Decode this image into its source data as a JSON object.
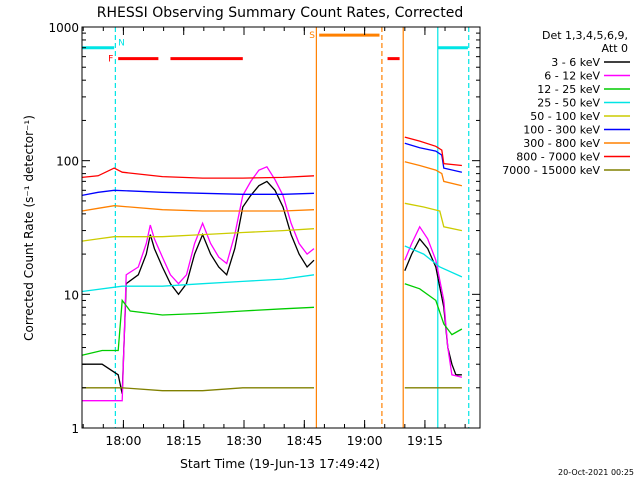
{
  "chart_data": {
    "type": "line",
    "title": "RHESSI Observing Summary Count Rates, Corrected",
    "xlabel": "Start Time (19-Jun-13 17:49:42)",
    "ylabel": "Corrected Count Rate (s⁻¹ detector⁻¹)",
    "y_scale": "log",
    "ylim": [
      1,
      1000
    ],
    "x_units": "minutes after 17:49:42",
    "xlim": [
      0,
      99
    ],
    "x_ticks": [
      {
        "t": 10.3,
        "label": "18:00"
      },
      {
        "t": 25.3,
        "label": "18:15"
      },
      {
        "t": 40.3,
        "label": "18:30"
      },
      {
        "t": 55.3,
        "label": "18:45"
      },
      {
        "t": 70.3,
        "label": "19:00"
      },
      {
        "t": 85.3,
        "label": "19:15"
      }
    ],
    "y_ticks": [
      {
        "v": 1,
        "label": "1"
      },
      {
        "v": 10,
        "label": "10"
      },
      {
        "v": 100,
        "label": "100"
      },
      {
        "v": 1000,
        "label": "1000"
      }
    ],
    "legend": {
      "header": [
        "Det 1,3,4,5,6,9,",
        "Att 0"
      ],
      "placement": "right"
    },
    "footer_date": "20-Oct-2021 00:25",
    "series": [
      {
        "name": "3 - 6 keV",
        "color": "#000000",
        "points": [
          [
            0,
            3
          ],
          [
            5,
            3
          ],
          [
            9,
            2.5
          ],
          [
            10,
            1.8
          ],
          [
            11,
            12
          ],
          [
            14,
            14
          ],
          [
            16,
            20
          ],
          [
            17,
            28
          ],
          [
            18,
            22
          ],
          [
            20,
            16
          ],
          [
            22,
            12
          ],
          [
            24,
            10
          ],
          [
            26,
            12
          ],
          [
            28,
            20
          ],
          [
            30,
            28
          ],
          [
            32,
            20
          ],
          [
            34,
            16
          ],
          [
            36,
            14
          ],
          [
            38,
            22
          ],
          [
            40,
            45
          ],
          [
            42,
            55
          ],
          [
            44,
            65
          ],
          [
            46,
            70
          ],
          [
            48,
            60
          ],
          [
            50,
            45
          ],
          [
            52,
            28
          ],
          [
            54,
            20
          ],
          [
            56,
            16
          ],
          [
            57.7,
            18
          ],
          [
            null,
            null
          ],
          [
            80.3,
            15
          ],
          [
            82,
            20
          ],
          [
            84,
            26
          ],
          [
            86,
            22
          ],
          [
            88,
            16
          ],
          [
            90,
            8
          ],
          [
            91,
            4
          ],
          [
            92,
            3
          ],
          [
            93,
            2.5
          ],
          [
            94.5,
            2.5
          ]
        ]
      },
      {
        "name": "6 - 12 keV",
        "color": "#ff00ff",
        "points": [
          [
            0,
            1.6
          ],
          [
            5,
            1.6
          ],
          [
            10,
            1.6
          ],
          [
            11,
            14
          ],
          [
            14,
            16
          ],
          [
            16,
            24
          ],
          [
            17,
            33
          ],
          [
            18,
            26
          ],
          [
            20,
            19
          ],
          [
            22,
            14
          ],
          [
            24,
            12
          ],
          [
            26,
            14
          ],
          [
            28,
            24
          ],
          [
            30,
            34
          ],
          [
            32,
            24
          ],
          [
            34,
            19
          ],
          [
            36,
            17
          ],
          [
            38,
            28
          ],
          [
            40,
            55
          ],
          [
            42,
            70
          ],
          [
            44,
            85
          ],
          [
            46,
            90
          ],
          [
            48,
            72
          ],
          [
            50,
            55
          ],
          [
            52,
            34
          ],
          [
            54,
            24
          ],
          [
            56,
            20
          ],
          [
            57.7,
            22
          ],
          [
            null,
            null
          ],
          [
            80.3,
            18
          ],
          [
            82,
            24
          ],
          [
            84,
            32
          ],
          [
            86,
            26
          ],
          [
            88,
            18
          ],
          [
            90,
            9
          ],
          [
            91,
            4
          ],
          [
            92,
            2.5
          ],
          [
            94.5,
            2.4
          ]
        ]
      },
      {
        "name": "12 - 25 keV",
        "color": "#00cc00",
        "points": [
          [
            0,
            3.5
          ],
          [
            5,
            3.8
          ],
          [
            9,
            3.8
          ],
          [
            10,
            9
          ],
          [
            12,
            7.5
          ],
          [
            20,
            7
          ],
          [
            30,
            7.2
          ],
          [
            40,
            7.5
          ],
          [
            50,
            7.8
          ],
          [
            57.7,
            8
          ],
          [
            null,
            null
          ],
          [
            80.3,
            12
          ],
          [
            84,
            11
          ],
          [
            88,
            9
          ],
          [
            90,
            6
          ],
          [
            92,
            5
          ],
          [
            94.5,
            5.5
          ]
        ]
      },
      {
        "name": "25 - 50 keV",
        "color": "#00e5e5",
        "points": [
          [
            0,
            10.5
          ],
          [
            10,
            11.5
          ],
          [
            20,
            11.5
          ],
          [
            30,
            12
          ],
          [
            40,
            12.5
          ],
          [
            50,
            13
          ],
          [
            57.7,
            14
          ],
          [
            null,
            null
          ],
          [
            80.3,
            23
          ],
          [
            85,
            20
          ],
          [
            89,
            16
          ],
          [
            94.5,
            13.5
          ]
        ]
      },
      {
        "name": "50 - 100 keV",
        "color": "#cccc00",
        "points": [
          [
            0,
            25
          ],
          [
            4,
            26
          ],
          [
            8,
            27
          ],
          [
            20,
            27
          ],
          [
            30,
            28
          ],
          [
            40,
            29
          ],
          [
            50,
            30
          ],
          [
            57.7,
            31
          ],
          [
            null,
            null
          ],
          [
            80.3,
            48
          ],
          [
            85,
            45
          ],
          [
            89,
            42
          ],
          [
            90,
            32
          ],
          [
            94.5,
            30
          ]
        ]
      },
      {
        "name": "100 - 300 keV",
        "color": "#0000ff",
        "points": [
          [
            0,
            55
          ],
          [
            4,
            58
          ],
          [
            8,
            60
          ],
          [
            20,
            58
          ],
          [
            30,
            57
          ],
          [
            40,
            56
          ],
          [
            50,
            56
          ],
          [
            57.7,
            57
          ],
          [
            null,
            null
          ],
          [
            80.3,
            135
          ],
          [
            84,
            125
          ],
          [
            88,
            118
          ],
          [
            89.5,
            110
          ],
          [
            90,
            88
          ],
          [
            94.5,
            82
          ]
        ]
      },
      {
        "name": "300 - 800 keV",
        "color": "#ff8000",
        "points": [
          [
            0,
            42
          ],
          [
            4,
            44
          ],
          [
            8,
            46
          ],
          [
            20,
            43
          ],
          [
            30,
            42
          ],
          [
            40,
            42
          ],
          [
            50,
            42
          ],
          [
            57.7,
            43
          ],
          [
            null,
            null
          ],
          [
            80.3,
            98
          ],
          [
            84,
            92
          ],
          [
            88,
            85
          ],
          [
            89.5,
            80
          ],
          [
            90,
            70
          ],
          [
            94.5,
            65
          ]
        ]
      },
      {
        "name": "800 - 7000 keV",
        "color": "#ff0000",
        "points": [
          [
            0,
            75
          ],
          [
            4,
            77
          ],
          [
            8,
            88
          ],
          [
            10,
            82
          ],
          [
            20,
            76
          ],
          [
            30,
            74
          ],
          [
            40,
            74
          ],
          [
            50,
            75
          ],
          [
            57.7,
            77
          ],
          [
            null,
            null
          ],
          [
            80.3,
            150
          ],
          [
            84,
            140
          ],
          [
            88,
            128
          ],
          [
            89.5,
            120
          ],
          [
            90,
            95
          ],
          [
            94.5,
            92
          ]
        ]
      },
      {
        "name": "7000 - 15000 keV",
        "color": "#808000",
        "points": [
          [
            0,
            2
          ],
          [
            10,
            2
          ],
          [
            20,
            1.9
          ],
          [
            30,
            1.9
          ],
          [
            40,
            2
          ],
          [
            50,
            2
          ],
          [
            57.7,
            2
          ],
          [
            null,
            null
          ],
          [
            80.3,
            2
          ],
          [
            86,
            2
          ],
          [
            90,
            2
          ],
          [
            94.5,
            2
          ]
        ]
      }
    ],
    "flag_bars": [
      {
        "label": "F",
        "color": "#ff0000",
        "y": 580,
        "segments": [
          [
            9,
            19
          ],
          [
            22,
            40
          ],
          [
            76,
            79
          ]
        ]
      },
      {
        "label": "S",
        "color": "#ff8000",
        "y": 870,
        "segments": [
          [
            59,
            74
          ]
        ]
      },
      {
        "label": "N",
        "color": "#00e5e5",
        "y": 700,
        "segments": [
          [
            0,
            8
          ],
          [
            88.5,
            96
          ]
        ]
      }
    ],
    "vlines": [
      {
        "t": 8.3,
        "color": "#00e5e5",
        "style": "dashed"
      },
      {
        "t": 58.3,
        "color": "#ff8000",
        "style": "solid"
      },
      {
        "t": 74.6,
        "color": "#ff8000",
        "style": "dashed"
      },
      {
        "t": 79.9,
        "color": "#ff8000",
        "style": "solid"
      },
      {
        "t": 88.5,
        "color": "#00e5e5",
        "style": "solid"
      },
      {
        "t": 96.2,
        "color": "#00e5e5",
        "style": "dashed"
      }
    ]
  }
}
